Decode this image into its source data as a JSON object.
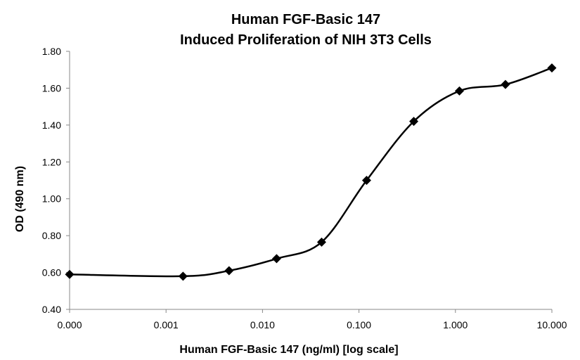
{
  "chart_data": {
    "type": "line",
    "title": "Human FGF-Basic 147",
    "subtitle": "Induced Proliferation of NIH 3T3 Cells",
    "xlabel": "Human FGF-Basic 147 (ng/ml) [log scale]",
    "ylabel": "OD (490 nm)",
    "x_scale": "log",
    "x_tick_labels": [
      "0.000",
      "0.001",
      "0.010",
      "0.100",
      "1.000",
      "10.000"
    ],
    "y_tick_labels": [
      "0.40",
      "0.60",
      "0.80",
      "1.00",
      "1.20",
      "1.40",
      "1.60",
      "1.80"
    ],
    "ylim": [
      0.4,
      1.8
    ],
    "grid": false,
    "legend": "none",
    "series": [
      {
        "marker": "diamond",
        "color": "#000000",
        "smooth": true,
        "points": [
          {
            "x": 0.0001,
            "y": 0.59
          },
          {
            "x": 0.0015,
            "y": 0.58
          },
          {
            "x": 0.0045,
            "y": 0.61
          },
          {
            "x": 0.014,
            "y": 0.675
          },
          {
            "x": 0.041,
            "y": 0.765
          },
          {
            "x": 0.12,
            "y": 1.1
          },
          {
            "x": 0.37,
            "y": 1.42
          },
          {
            "x": 1.1,
            "y": 1.585
          },
          {
            "x": 3.3,
            "y": 1.62
          },
          {
            "x": 10,
            "y": 1.71
          }
        ]
      }
    ]
  }
}
